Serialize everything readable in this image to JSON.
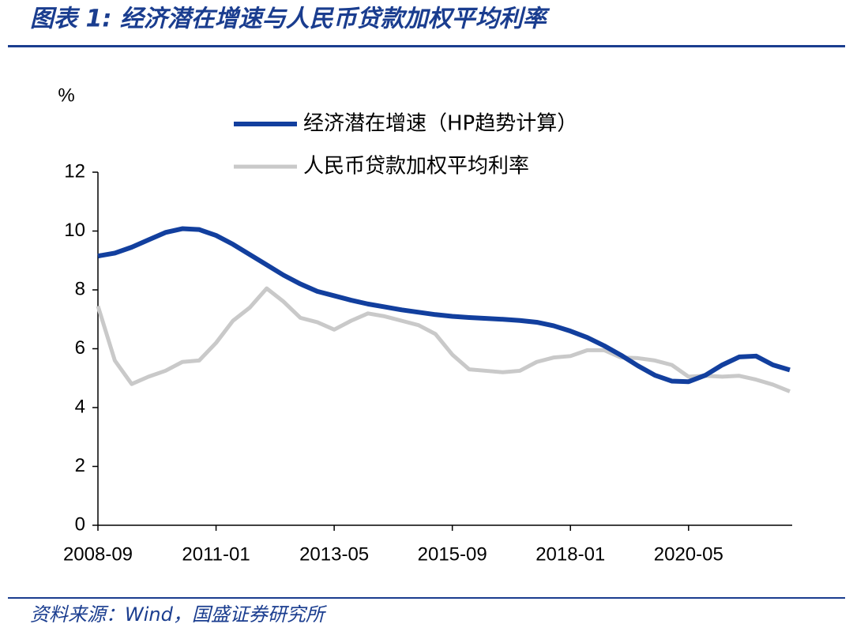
{
  "header": {
    "title": "图表 1:  经济潜在增速与人民币贷款加权平均利率"
  },
  "chart_data": {
    "type": "line",
    "y_unit": "%",
    "categories": [
      "2008-09",
      null,
      null,
      null,
      null,
      null,
      null,
      "2011-01",
      null,
      null,
      null,
      null,
      null,
      null,
      "2013-05",
      null,
      null,
      null,
      null,
      null,
      null,
      "2015-09",
      null,
      null,
      null,
      null,
      null,
      null,
      "2018-01",
      null,
      null,
      null,
      null,
      null,
      null,
      "2020-05",
      null,
      null,
      null,
      null,
      null,
      null
    ],
    "series": [
      {
        "name": "经济潜在增速（HP趋势计算）",
        "color": "#123f9e",
        "values": [
          9.15,
          9.25,
          9.45,
          9.7,
          9.95,
          10.08,
          10.05,
          9.85,
          9.55,
          9.2,
          8.85,
          8.5,
          8.2,
          7.95,
          7.8,
          7.65,
          7.52,
          7.42,
          7.32,
          7.24,
          7.16,
          7.1,
          7.06,
          7.03,
          7.0,
          6.96,
          6.9,
          6.78,
          6.6,
          6.38,
          6.1,
          5.78,
          5.42,
          5.1,
          4.9,
          4.88,
          5.1,
          5.45,
          5.72,
          5.75,
          5.45,
          5.28
        ]
      },
      {
        "name": "人民币贷款加权平均利率",
        "color": "#c9c9c9",
        "values": [
          7.45,
          5.6,
          4.8,
          5.05,
          5.25,
          5.55,
          5.6,
          6.2,
          6.95,
          7.4,
          8.05,
          7.6,
          7.05,
          6.9,
          6.65,
          6.95,
          7.2,
          7.1,
          6.95,
          6.8,
          6.5,
          5.8,
          5.3,
          5.25,
          5.2,
          5.25,
          5.55,
          5.7,
          5.75,
          5.95,
          5.95,
          5.7,
          5.68,
          5.6,
          5.45,
          5.05,
          5.08,
          5.05,
          5.08,
          4.95,
          4.78,
          4.55
        ]
      }
    ],
    "ylim": [
      0,
      12
    ],
    "yticks": [
      0,
      2,
      4,
      6,
      8,
      10,
      12
    ]
  },
  "footer": {
    "source": "资料来源：Wind，国盛证券研究所"
  }
}
